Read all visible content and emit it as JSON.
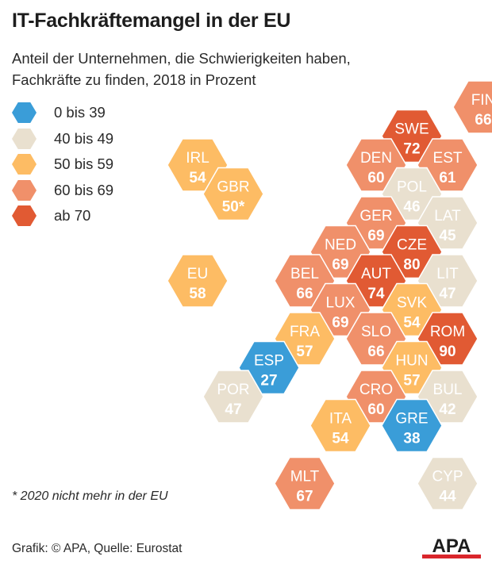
{
  "title": "IT-Fachkräftemangel in der EU",
  "subtitle_line1": "Anteil der Unternehmen, die Schwierigkeiten haben,",
  "subtitle_line2": "Fachkräfte zu finden, 2018 in Prozent",
  "legend": [
    {
      "label": "0 bis 39",
      "color": "#3a9dd8"
    },
    {
      "label": "40 bis 49",
      "color": "#e9e0cf"
    },
    {
      "label": "50 bis 59",
      "color": "#fdbc64"
    },
    {
      "label": "60 bis 69",
      "color": "#f0906a"
    },
    {
      "label": "ab 70",
      "color": "#e15a33"
    }
  ],
  "footnote": "* 2020 nicht mehr in der EU",
  "source": "Grafik: © APA, Quelle: Eurostat",
  "logo_text": "APA",
  "chart_data": {
    "type": "hex-tile map",
    "title": "IT-Fachkräftemangel in der EU",
    "subtitle": "Anteil der Unternehmen, die Schwierigkeiten haben, Fachkräfte zu finden, 2018 in Prozent",
    "tiles": [
      {
        "code": "FIN",
        "value": 66,
        "label": "66",
        "col": 8,
        "row": 0
      },
      {
        "code": "SWE",
        "value": 72,
        "label": "72",
        "col": 6,
        "row": 1
      },
      {
        "code": "IRL",
        "value": 54,
        "label": "54",
        "col": 0,
        "row": 2
      },
      {
        "code": "DEN",
        "value": 60,
        "label": "60",
        "col": 5,
        "row": 2
      },
      {
        "code": "EST",
        "value": 61,
        "label": "61",
        "col": 7,
        "row": 2
      },
      {
        "code": "GBR",
        "value": 50,
        "label": "50*",
        "col": 1,
        "row": 3
      },
      {
        "code": "POL",
        "value": 46,
        "label": "46",
        "col": 6,
        "row": 3
      },
      {
        "code": "GER",
        "value": 69,
        "label": "69",
        "col": 5,
        "row": 4
      },
      {
        "code": "LAT",
        "value": 45,
        "label": "45",
        "col": 7,
        "row": 4
      },
      {
        "code": "NED",
        "value": 69,
        "label": "69",
        "col": 4,
        "row": 5
      },
      {
        "code": "CZE",
        "value": 80,
        "label": "80",
        "col": 6,
        "row": 5
      },
      {
        "code": "BEL",
        "value": 66,
        "label": "66",
        "col": 3,
        "row": 6
      },
      {
        "code": "AUT",
        "value": 74,
        "label": "74",
        "col": 5,
        "row": 6
      },
      {
        "code": "LIT",
        "value": 47,
        "label": "47",
        "col": 7,
        "row": 6
      },
      {
        "code": "EU",
        "value": 58,
        "label": "58",
        "col": 0,
        "row": 6
      },
      {
        "code": "LUX",
        "value": 69,
        "label": "69",
        "col": 4,
        "row": 7
      },
      {
        "code": "SVK",
        "value": 54,
        "label": "54",
        "col": 6,
        "row": 7
      },
      {
        "code": "FRA",
        "value": 57,
        "label": "57",
        "col": 3,
        "row": 8
      },
      {
        "code": "SLO",
        "value": 66,
        "label": "66",
        "col": 5,
        "row": 8
      },
      {
        "code": "ROM",
        "value": 90,
        "label": "90",
        "col": 7,
        "row": 8
      },
      {
        "code": "ESP",
        "value": 27,
        "label": "27",
        "col": 2,
        "row": 9
      },
      {
        "code": "HUN",
        "value": 57,
        "label": "57",
        "col": 6,
        "row": 9
      },
      {
        "code": "POR",
        "value": 47,
        "label": "47",
        "col": 1,
        "row": 10
      },
      {
        "code": "CRO",
        "value": 60,
        "label": "60",
        "col": 5,
        "row": 10
      },
      {
        "code": "BUL",
        "value": 42,
        "label": "42",
        "col": 7,
        "row": 10
      },
      {
        "code": "ITA",
        "value": 54,
        "label": "54",
        "col": 4,
        "row": 11
      },
      {
        "code": "GRE",
        "value": 38,
        "label": "38",
        "col": 6,
        "row": 11
      },
      {
        "code": "MLT",
        "value": 67,
        "label": "67",
        "col": 3,
        "row": 13
      },
      {
        "code": "CYP",
        "value": 44,
        "label": "44",
        "col": 7,
        "row": 13
      }
    ],
    "scale": [
      {
        "min": 0,
        "max": 39,
        "color": "#3a9dd8",
        "text": "#ffffff"
      },
      {
        "min": 40,
        "max": 49,
        "color": "#e9e0cf",
        "text": "#ffffff"
      },
      {
        "min": 50,
        "max": 59,
        "color": "#fdbc64",
        "text": "#ffffff"
      },
      {
        "min": 60,
        "max": 69,
        "color": "#f0906a",
        "text": "#ffffff"
      },
      {
        "min": 70,
        "max": 1000,
        "color": "#e15a33",
        "text": "#ffffff"
      }
    ]
  },
  "logo_colors": {
    "bar": "#d9262b",
    "text": "#1d1d1d"
  }
}
